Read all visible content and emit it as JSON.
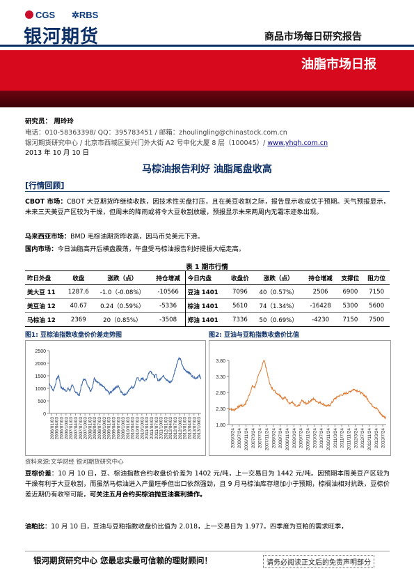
{
  "header": {
    "cgs": "CGS",
    "rbs": "RBS",
    "company": "银河期货",
    "report_type": "商品市场每日研究报告",
    "daily_title": "油脂市场日报"
  },
  "info": {
    "researcher_label": "研究员：",
    "researcher": "周玲玲",
    "contact": "电话：010-58363398/ QQ：395783451 / 邮箱：zhoulingling@chinastock.com.cn",
    "address": "银河期货研究中心 / 北京市西城区复兴门外大街 A2 号中化大厦 8 层（100045）/ ",
    "website": "www.yhqh.com.cn",
    "date": "2013 年 10 月 10 日"
  },
  "headline": "马棕油报告利好  油脂尾盘收高",
  "section1": "[行情回顾]",
  "paragraphs": {
    "cbot_label": "CBOT 市场：",
    "cbot_text": "CBOT 大豆期货昨继续收跌，因技术性买盘打压，且在美豆收割之际，报告显示收成优于预期。天气预报显示，未来三天美豆产区较为干燥，但周末的降雨或将令大豆收割放缓，预报显示未来两周内无霜冻迹象出现。",
    "my_label": "马来西亚市场：",
    "my_text": "BMD 毛棕油期货昨收高，因马币兑美元下滑。",
    "cn_label": "国内市场：",
    "cn_text": "今日油脂高开后横盘震荡，午盘受马棕油报告利好提振大幅走高。"
  },
  "table": {
    "title": "表 1    期市行情",
    "headers": [
      "昨日外盘",
      "收盘",
      "涨跌（点）",
      "持仓增减",
      "今日内盘",
      "收盘价",
      "涨跌（点）",
      "持仓增减",
      "支撑位",
      "阻力位"
    ],
    "rows": [
      [
        "美大豆 11",
        "1287.6",
        "-1.0（-0.08%）",
        "-10566",
        "豆油 1401",
        "7096",
        "40（0.57%）",
        "2506",
        "6900",
        "7150"
      ],
      [
        "美豆油 12",
        "40.67",
        "0.24（0.59%）",
        "-5336",
        "棕油 1401",
        "5610",
        "74（1.34%）",
        "-16428",
        "5300",
        "5600"
      ],
      [
        "马棕油 12",
        "2369",
        "20（0.85%）",
        "-3508",
        "郑油 1401",
        "7336",
        "50（0.69%）",
        "-4230",
        "7150",
        "7500"
      ]
    ]
  },
  "chart1": {
    "title": "图1: 豆棕油指数收盘价价差走势图"
  },
  "chart2": {
    "title": "图2:  豆油与豆粕指数收盘价比值"
  },
  "chart_data": [
    {
      "type": "line",
      "title": "",
      "xlabel": "",
      "ylabel": "",
      "ylim": [
        0,
        2500
      ],
      "yticks": [
        "0",
        "500",
        "1000",
        "1500",
        "2000",
        "2500"
      ],
      "xticks": [
        "2006/01/03",
        "2006/04/03",
        "2006/07/03",
        "2006/10/03",
        "2007/01/03",
        "2007/04/03",
        "2007/07/03",
        "2007/10/03",
        "2008/01/03",
        "2008/04/03",
        "2008/07/03",
        "2008/10/03",
        "2009/01/03",
        "2009/04/03",
        "2009/07/03",
        "2009/10/03",
        "2010/01/03",
        "2010/04/03",
        "2010/07/03",
        "2010/10/03",
        "2011/01/03",
        "2011/04/03",
        "2011/07/03",
        "2011/10/03",
        "2012/01/03",
        "2012/04/03",
        "2012/07/03",
        "2012/10/03",
        "2013/01/03",
        "2013/04/03",
        "2013/07/03",
        "2013/10/03"
      ],
      "color": "#3a66a8",
      "series": [
        {
          "values": [
            1200,
            1050,
            900,
            1100,
            1400,
            1500,
            1050,
            1000,
            950,
            900,
            1000,
            900,
            1150,
            1000,
            850,
            800,
            700,
            1100,
            1300,
            1400,
            1200,
            1050,
            900,
            1050,
            1400,
            1300,
            1250,
            1150,
            1100,
            1050,
            950,
            900,
            800,
            850,
            950,
            1000,
            1050,
            1100,
            900,
            800,
            750,
            780,
            850,
            1000,
            1050,
            1000,
            1250,
            1450,
            1300,
            1350,
            1400,
            1300,
            1400,
            1600,
            1700,
            1600,
            1450,
            1550,
            1300,
            1350,
            1450,
            1500,
            1400,
            1300,
            1250,
            1250,
            1400,
            1700,
            1950,
            2200,
            2150,
            1900,
            1750,
            1700,
            1650,
            1600,
            1500,
            1450,
            1400,
            1450,
            1500,
            1400
          ]
        }
      ]
    },
    {
      "type": "line",
      "title": "",
      "xlabel": "",
      "ylabel": "",
      "ylim": [
        1.8,
        3.8
      ],
      "yticks": [
        "1.80",
        "2.30",
        "2.80",
        "3.30",
        "3.80"
      ],
      "xticks": [
        "2006/3/24",
        "2006/7/24",
        "2006/11/24",
        "2007/3/24",
        "2007/7/24",
        "2007/11/24",
        "2008/3/24",
        "2008/7/24",
        "2008/11/24",
        "2009/3/24",
        "2009/7/24",
        "2009/11/24",
        "2010/3/24",
        "2010/7/24",
        "2010/11/24",
        "2011/3/24",
        "2011/7/24",
        "2011/11/24",
        "2012/3/24",
        "2012/7/24",
        "2012/11/24",
        "2013/3/24",
        "2013/7/24"
      ],
      "color": "#e0762b",
      "series": [
        {
          "values": [
            2.3,
            2.28,
            2.25,
            2.3,
            2.35,
            2.4,
            2.38,
            2.45,
            2.6,
            2.8,
            3.0,
            2.95,
            3.2,
            3.4,
            3.6,
            3.85,
            3.5,
            3.2,
            2.95,
            2.9,
            2.8,
            2.75,
            2.7,
            2.6,
            2.65,
            2.55,
            2.45,
            2.5,
            2.4,
            2.35,
            2.4,
            2.55,
            2.5,
            2.45,
            2.5,
            2.55,
            2.6,
            2.55,
            2.5,
            2.48,
            2.45,
            2.4,
            2.38,
            2.4,
            2.5,
            2.6,
            2.65,
            2.7,
            2.72,
            2.75,
            2.78,
            2.8,
            2.85,
            2.9,
            2.88,
            2.85,
            2.8,
            2.75,
            2.7,
            2.6,
            2.5,
            2.4,
            2.35,
            2.3,
            2.2,
            2.1,
            2.05,
            2.0
          ]
        }
      ]
    }
  ],
  "source": "资料来源:文华财经    银河期货研究中心",
  "bottom_paragraphs": {
    "spread_label": "豆棕价差",
    "spread_text": "：10 月 10 日，豆、棕油指数合约收盘价价差为 1402 元/吨，上一交易日为 1442 元/吨。因预期本周美豆产区较为干燥有利于大豆收割，而虽然马棕油进入产量旺季但出口依然强劲，且 9 月马棕油库存增加小于预期，棕榈油相对抗跌，豆棕价差近期仍有收窄可能，",
    "spread_bold": "可关注五月合约买棕油抛豆油套利操作。",
    "ratio_label": "油粕比",
    "ratio_text": "：10 月 10 日，豆油与豆粕指数收盘价比值为 2.018，上一交易日为 1.977。四季度为豆粕的需求旺季，"
  },
  "footer": {
    "slogan": "银河期货研究中心  您最忠实最可信赖的理财顾问！",
    "disclaimer": "请务必阅读正文后的免责声明部分"
  }
}
